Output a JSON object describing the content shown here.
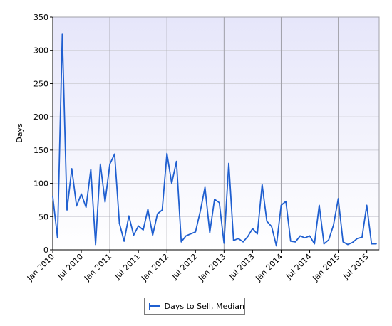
{
  "chart_data": {
    "type": "line",
    "ylabel": "Days",
    "xlabel": "",
    "ylim": [
      0,
      350
    ],
    "yticks": [
      0,
      50,
      100,
      150,
      200,
      250,
      300,
      350
    ],
    "x_tick_labels": [
      "Jan 2010",
      "Jul 2010",
      "Jan 2011",
      "Jul 2011",
      "Jan 2012",
      "Jul 2012",
      "Jan 2013",
      "Jul 2013",
      "Jan 2014",
      "Jul 2014",
      "Jan 2015",
      "Jul 2015"
    ],
    "grid": "vertical lines at Jan of each year; horizontal lines at each y tick",
    "legend_position": "bottom-center",
    "series": [
      {
        "name": "Days to Sell, Median",
        "color": "#1f5fd0",
        "x": [
          "2010-01",
          "2010-02",
          "2010-03",
          "2010-04",
          "2010-05",
          "2010-06",
          "2010-07",
          "2010-08",
          "2010-09",
          "2010-10",
          "2010-11",
          "2010-12",
          "2011-01",
          "2011-02",
          "2011-03",
          "2011-04",
          "2011-05",
          "2011-06",
          "2011-07",
          "2011-08",
          "2011-09",
          "2011-10",
          "2011-11",
          "2011-12",
          "2012-01",
          "2012-02",
          "2012-03",
          "2012-04",
          "2012-05",
          "2012-06",
          "2012-07",
          "2012-08",
          "2012-09",
          "2012-10",
          "2012-11",
          "2012-12",
          "2013-01",
          "2013-02",
          "2013-03",
          "2013-04",
          "2013-05",
          "2013-06",
          "2013-07",
          "2013-08",
          "2013-09",
          "2013-10",
          "2013-11",
          "2013-12",
          "2014-01",
          "2014-02",
          "2014-03",
          "2014-04",
          "2014-05",
          "2014-06",
          "2014-07",
          "2014-08",
          "2014-09",
          "2014-10",
          "2014-11",
          "2014-12",
          "2015-01",
          "2015-02",
          "2015-03",
          "2015-04",
          "2015-05",
          "2015-06",
          "2015-07",
          "2015-08",
          "2015-09"
        ],
        "values": [
          80,
          18,
          324,
          60,
          122,
          66,
          84,
          64,
          121,
          8,
          129,
          72,
          129,
          144,
          40,
          13,
          51,
          22,
          36,
          30,
          61,
          22,
          54,
          60,
          145,
          100,
          133,
          12,
          21,
          24,
          27,
          58,
          94,
          26,
          76,
          71,
          10,
          130,
          14,
          17,
          12,
          20,
          32,
          24,
          98,
          43,
          35,
          6,
          67,
          73,
          13,
          12,
          21,
          18,
          21,
          9,
          67,
          9,
          15,
          37,
          77,
          12,
          8,
          11,
          17,
          19,
          67,
          9,
          9
        ]
      }
    ]
  }
}
